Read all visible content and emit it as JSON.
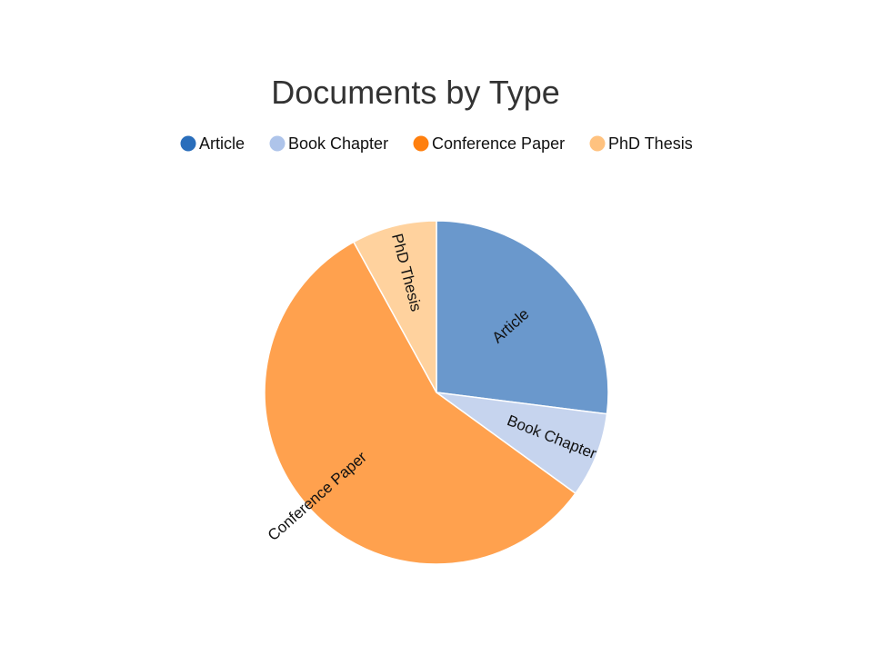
{
  "chart_data": {
    "type": "pie",
    "title": "Documents by Type",
    "legend_position": "top",
    "categories": [
      "Article",
      "Book Chapter",
      "Conference Paper",
      "PhD Thesis"
    ],
    "values": [
      27,
      8,
      57,
      8
    ],
    "legend_colors": [
      "#2a6ebb",
      "#aec4ea",
      "#ff7f0e",
      "#ffc27f"
    ],
    "slice_colors": [
      "#6a98cc",
      "#c6d4ee",
      "#ffa14e",
      "#ffd29e"
    ]
  }
}
